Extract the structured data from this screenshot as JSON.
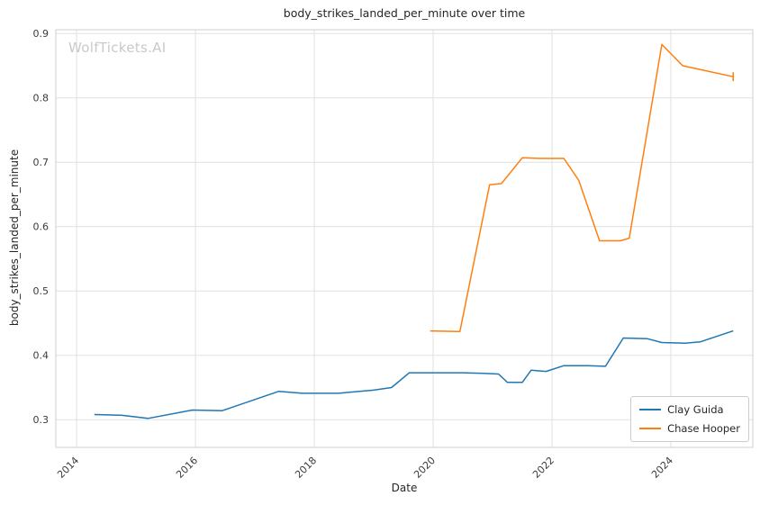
{
  "watermark": "WolfTickets.AI",
  "chart_data": {
    "type": "line",
    "title": "body_strikes_landed_per_minute over time",
    "xlabel": "Date",
    "ylabel": "body_strikes_landed_per_minute",
    "xlim": [
      2013.65,
      2025.38
    ],
    "ylim": [
      0.257,
      0.906
    ],
    "x_ticks": [
      2014,
      2016,
      2018,
      2020,
      2022,
      2024
    ],
    "y_ticks": [
      0.3,
      0.4,
      0.5,
      0.6,
      0.7,
      0.8,
      0.9
    ],
    "grid": true,
    "legend_position": "lower right",
    "series": [
      {
        "name": "Clay Guida",
        "color": "#1f77b4",
        "x": [
          2014.3,
          2014.75,
          2015.2,
          2015.95,
          2016.45,
          2017.4,
          2017.8,
          2018.4,
          2019.0,
          2019.3,
          2019.6,
          2020.1,
          2020.5,
          2020.85,
          2021.1,
          2021.25,
          2021.5,
          2021.65,
          2021.9,
          2022.2,
          2022.6,
          2022.9,
          2023.2,
          2023.6,
          2023.85,
          2024.25,
          2024.5,
          2025.05
        ],
        "y": [
          0.308,
          0.307,
          0.302,
          0.315,
          0.314,
          0.344,
          0.341,
          0.341,
          0.346,
          0.35,
          0.373,
          0.373,
          0.373,
          0.372,
          0.371,
          0.358,
          0.358,
          0.377,
          0.375,
          0.384,
          0.384,
          0.383,
          0.427,
          0.426,
          0.42,
          0.419,
          0.421,
          0.438
        ]
      },
      {
        "name": "Chase Hooper",
        "color": "#ff7f0e",
        "x": [
          2019.95,
          2020.45,
          2020.95,
          2021.15,
          2021.5,
          2021.8,
          2022.2,
          2022.45,
          2022.8,
          2023.15,
          2023.3,
          2023.85,
          2024.2,
          2024.4,
          2025.05
        ],
        "y": [
          0.438,
          0.437,
          0.665,
          0.667,
          0.707,
          0.706,
          0.706,
          0.672,
          0.578,
          0.578,
          0.582,
          0.883,
          0.85,
          0.846,
          0.833
        ],
        "end_bar": [
          0.826,
          0.84
        ]
      }
    ]
  }
}
